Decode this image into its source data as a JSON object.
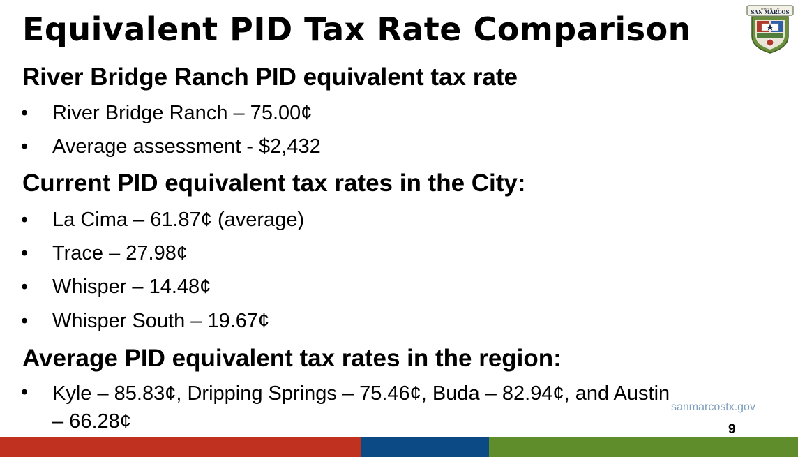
{
  "slide": {
    "title": "Equivalent PID Tax Rate Comparison",
    "logo_text_top": "THE CITY OF",
    "logo_text": "SAN MARCOS",
    "sections": [
      {
        "heading": "River Bridge Ranch PID equivalent tax rate",
        "bullets": [
          "River Bridge Ranch – 75.00¢",
          "Average assessment - $2,432"
        ]
      },
      {
        "heading": "Current PID equivalent tax rates in the City:",
        "bullets": [
          "La Cima – 61.87¢ (average)",
          "Trace – 27.98¢",
          "Whisper – 14.48¢",
          "Whisper South – 19.67¢"
        ]
      },
      {
        "heading": "Average PID equivalent tax rates in the region:",
        "bullets": [
          "Kyle – 85.83¢, Dripping Springs – 75.46¢, Buda – 82.94¢, and Austin – 66.28¢"
        ]
      }
    ],
    "bullet_char": "•",
    "website": "sanmarcostx.gov",
    "page_number": "9"
  },
  "colors": {
    "bar_red": "#c0311f",
    "bar_blue": "#0b4a85",
    "bar_green": "#5f8d2c",
    "website_text": "#7f9fbf"
  }
}
